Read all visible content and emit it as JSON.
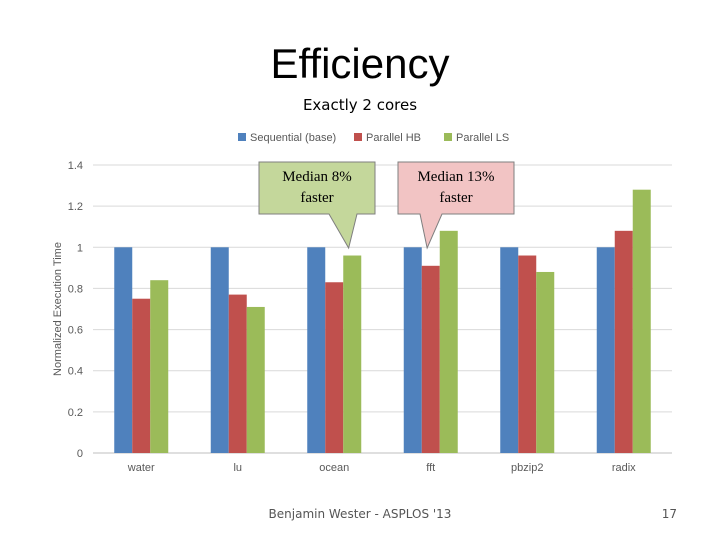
{
  "slide": {
    "title": "Efficiency",
    "subtitle": "Exactly 2 cores",
    "footer": "Benjamin Wester - ASPLOS '13",
    "page_number": "17"
  },
  "callouts": [
    {
      "line1": "Median 8%",
      "line2": "faster",
      "fill": "#c4d79b",
      "target": "ocean"
    },
    {
      "line1": "Median 13%",
      "line2": "faster",
      "fill": "#f2c4c4",
      "target": "fft"
    }
  ],
  "chart_data": {
    "type": "bar",
    "title": "",
    "xlabel": "",
    "ylabel": "Normalized Execution Time",
    "categories": [
      "water",
      "lu",
      "ocean",
      "fft",
      "pbzip2",
      "radix"
    ],
    "series": [
      {
        "name": "Sequential (base)",
        "color": "#4f81bd",
        "values": [
          1,
          1,
          1,
          1,
          1,
          1
        ]
      },
      {
        "name": "Parallel HB",
        "color": "#c0504d",
        "values": [
          0.75,
          0.77,
          0.83,
          0.91,
          0.96,
          1.08
        ]
      },
      {
        "name": "Parallel LS",
        "color": "#9bbb59",
        "values": [
          0.84,
          0.71,
          0.96,
          1.08,
          0.88,
          1.28
        ]
      }
    ],
    "ylim": [
      0,
      1.4
    ],
    "yticks": [
      "0",
      "0.2",
      "0.4",
      "0.6",
      "0.8",
      "1",
      "1.2",
      "1.4"
    ],
    "grid": true,
    "legend": "top"
  }
}
